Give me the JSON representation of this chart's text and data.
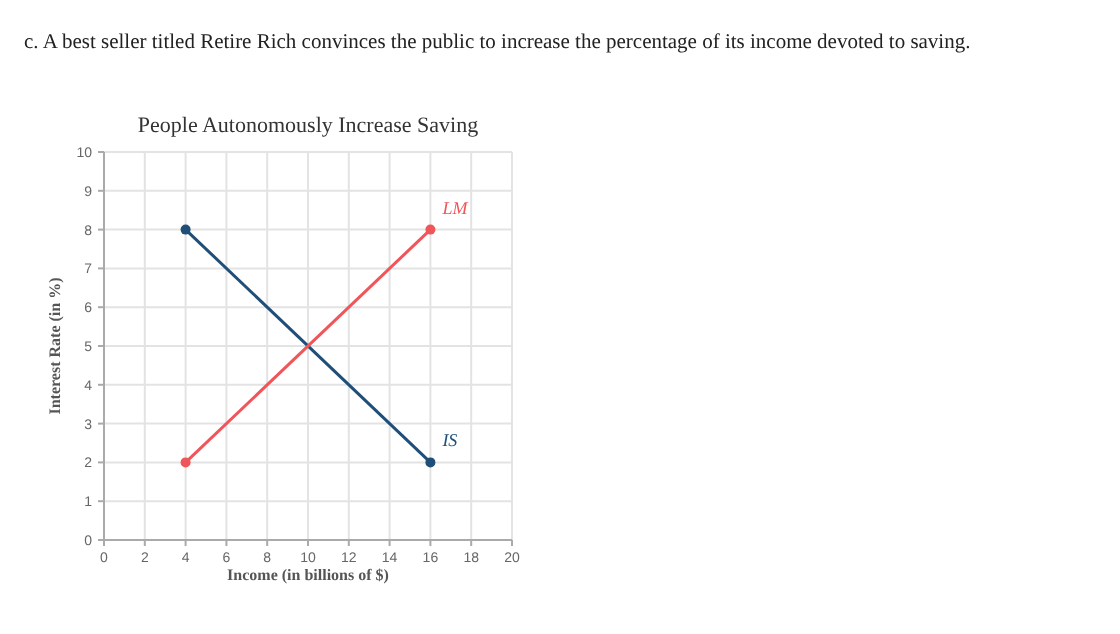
{
  "chart_data": {
    "type": "line",
    "title": "People Autonomously Increase Saving",
    "xlabel": "Income (in billions of $)",
    "ylabel": "Interest Rate (in %)",
    "annotations": [
      "c. A best seller titled Retire Rich convinces the public to increase the percentage of its income devoted to saving."
    ],
    "series": [
      {
        "name": "IS",
        "color": "#1f4e79",
        "values": [
          8,
          2
        ]
      },
      {
        "name": "LM",
        "color": "#f0555a",
        "values": [
          2,
          8
        ]
      }
    ],
    "x": [
      4,
      16
    ],
    "xlim": [
      0,
      20
    ],
    "xticks": [
      0,
      2,
      4,
      6,
      8,
      10,
      12,
      14,
      16,
      18,
      20
    ],
    "ylim": [
      0,
      10
    ],
    "yticks": [
      0,
      1,
      2,
      3,
      4,
      5,
      6,
      7,
      8,
      9,
      10
    ],
    "grid": true,
    "marker": "circle",
    "line_style": "solid"
  }
}
